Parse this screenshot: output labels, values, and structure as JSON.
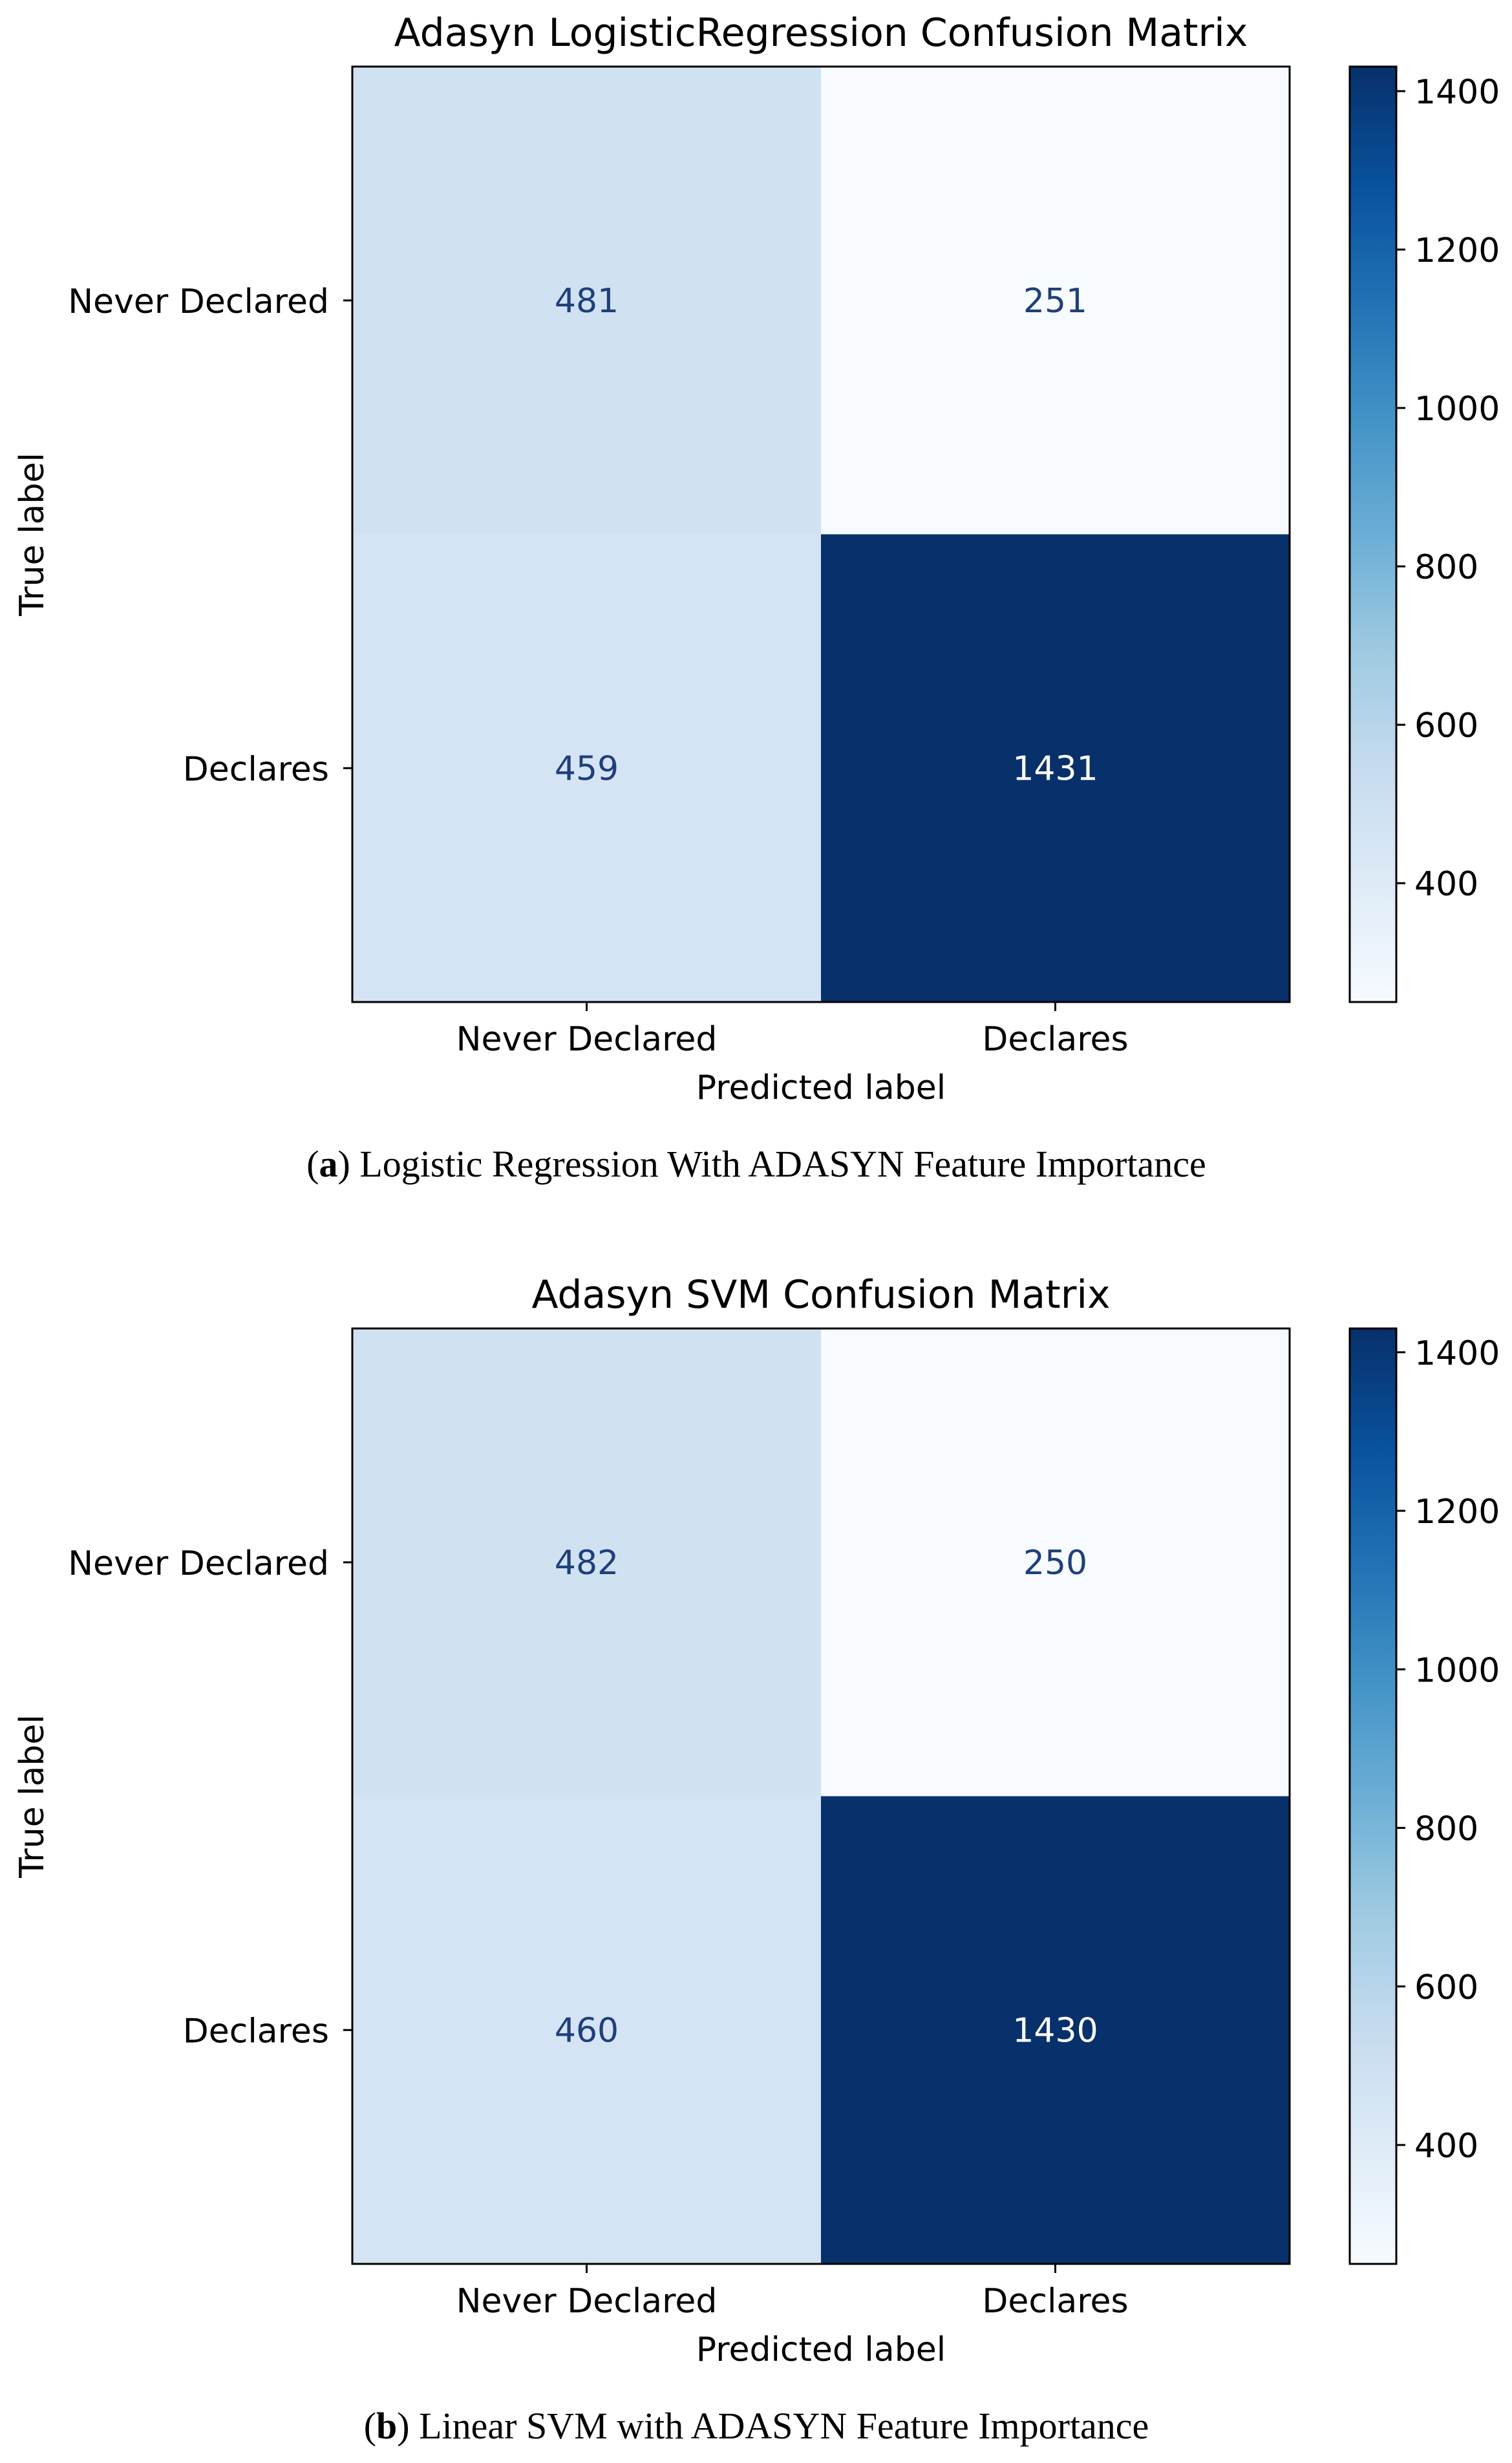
{
  "chart_data": [
    {
      "type": "heatmap",
      "title": "Adasyn LogisticRegression Confusion Matrix",
      "xlabel": "Predicted label",
      "ylabel": "True label",
      "x_categories": [
        "Never Declared",
        "Declares"
      ],
      "y_categories": [
        "Never Declared",
        "Declares"
      ],
      "values": [
        [
          481,
          251
        ],
        [
          459,
          1431
        ]
      ],
      "colorbar": {
        "range": [
          250,
          1431
        ],
        "ticks": [
          400,
          600,
          800,
          1000,
          1200,
          1400
        ],
        "colormap": "Blues"
      },
      "caption": {
        "letter": "a",
        "text": "Logistic Regression With ADASYN Feature Importance"
      }
    },
    {
      "type": "heatmap",
      "title": "Adasyn SVM Confusion Matrix",
      "xlabel": "Predicted label",
      "ylabel": "True label",
      "x_categories": [
        "Never Declared",
        "Declares"
      ],
      "y_categories": [
        "Never Declared",
        "Declares"
      ],
      "values": [
        [
          482,
          250
        ],
        [
          460,
          1430
        ]
      ],
      "colorbar": {
        "range": [
          250,
          1430
        ],
        "ticks": [
          400,
          600,
          800,
          1000,
          1200,
          1400
        ],
        "colormap": "Blues"
      },
      "caption": {
        "letter": "b",
        "text": "Linear SVM with ADASYN Feature Importance"
      }
    }
  ]
}
